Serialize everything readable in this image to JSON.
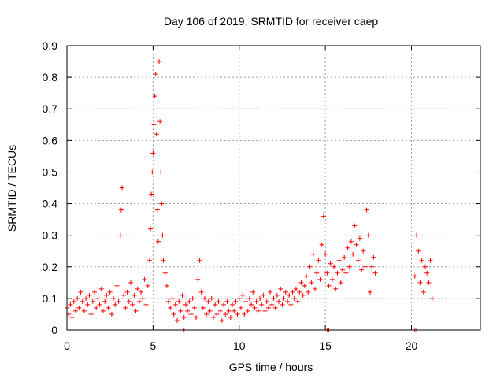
{
  "chart_data": {
    "type": "scatter",
    "title": "Day 106 of 2019, SRMTID for receiver caep",
    "xlabel": "GPS time / hours",
    "ylabel": "SRMTID / TECUs",
    "xlim": [
      0,
      24
    ],
    "ylim": [
      0,
      0.9
    ],
    "xticks": [
      0,
      5,
      10,
      15,
      20
    ],
    "yticks": [
      0,
      0.1,
      0.2,
      0.3,
      0.4,
      0.5,
      0.6,
      0.7,
      0.8,
      0.9
    ],
    "grid": true,
    "marker": "+",
    "marker_color": "#ff0000",
    "series": [
      {
        "name": "SRMTID",
        "points": [
          [
            0.0,
            0.07
          ],
          [
            0.1,
            0.05
          ],
          [
            0.2,
            0.08
          ],
          [
            0.3,
            0.04
          ],
          [
            0.4,
            0.09
          ],
          [
            0.5,
            0.06
          ],
          [
            0.6,
            0.1
          ],
          [
            0.7,
            0.07
          ],
          [
            0.8,
            0.12
          ],
          [
            0.9,
            0.09
          ],
          [
            1.0,
            0.06
          ],
          [
            1.1,
            0.1
          ],
          [
            1.2,
            0.08
          ],
          [
            1.3,
            0.11
          ],
          [
            1.4,
            0.05
          ],
          [
            1.5,
            0.09
          ],
          [
            1.6,
            0.12
          ],
          [
            1.7,
            0.07
          ],
          [
            1.8,
            0.1
          ],
          [
            1.9,
            0.08
          ],
          [
            2.0,
            0.13
          ],
          [
            2.1,
            0.06
          ],
          [
            2.2,
            0.09
          ],
          [
            2.3,
            0.11
          ],
          [
            2.4,
            0.07
          ],
          [
            2.5,
            0.12
          ],
          [
            2.6,
            0.05
          ],
          [
            2.7,
            0.1
          ],
          [
            2.8,
            0.08
          ],
          [
            2.9,
            0.14
          ],
          [
            3.0,
            0.09
          ],
          [
            3.1,
            0.3
          ],
          [
            3.15,
            0.38
          ],
          [
            3.2,
            0.45
          ],
          [
            3.3,
            0.11
          ],
          [
            3.4,
            0.07
          ],
          [
            3.5,
            0.12
          ],
          [
            3.6,
            0.09
          ],
          [
            3.7,
            0.15
          ],
          [
            3.8,
            0.08
          ],
          [
            3.9,
            0.11
          ],
          [
            4.0,
            0.06
          ],
          [
            4.1,
            0.13
          ],
          [
            4.2,
            0.09
          ],
          [
            4.3,
            0.12
          ],
          [
            4.4,
            0.1
          ],
          [
            4.5,
            0.16
          ],
          [
            4.6,
            0.08
          ],
          [
            4.7,
            0.14
          ],
          [
            4.8,
            0.22
          ],
          [
            4.85,
            0.32
          ],
          [
            4.9,
            0.43
          ],
          [
            4.95,
            0.5
          ],
          [
            5.0,
            0.56
          ],
          [
            5.05,
            0.65
          ],
          [
            5.1,
            0.74
          ],
          [
            5.15,
            0.81
          ],
          [
            5.2,
            0.62
          ],
          [
            5.25,
            0.38
          ],
          [
            5.3,
            0.28
          ],
          [
            5.35,
            0.85
          ],
          [
            5.4,
            0.66
          ],
          [
            5.45,
            0.5
          ],
          [
            5.5,
            0.4
          ],
          [
            5.55,
            0.3
          ],
          [
            5.6,
            0.22
          ],
          [
            5.7,
            0.18
          ],
          [
            5.8,
            0.14
          ],
          [
            5.9,
            0.09
          ],
          [
            6.0,
            0.07
          ],
          [
            6.1,
            0.1
          ],
          [
            6.2,
            0.05
          ],
          [
            6.3,
            0.08
          ],
          [
            6.4,
            0.03
          ],
          [
            6.5,
            0.09
          ],
          [
            6.6,
            0.06
          ],
          [
            6.7,
            0.11
          ],
          [
            6.8,
            0.04
          ],
          [
            6.9,
            0.08
          ],
          [
            7.0,
            0.06
          ],
          [
            7.1,
            0.09
          ],
          [
            7.2,
            0.05
          ],
          [
            7.3,
            0.1
          ],
          [
            7.4,
            0.07
          ],
          [
            7.5,
            0.04
          ],
          [
            7.6,
            0.16
          ],
          [
            7.7,
            0.22
          ],
          [
            7.8,
            0.12
          ],
          [
            7.9,
            0.07
          ],
          [
            8.0,
            0.1
          ],
          [
            8.1,
            0.05
          ],
          [
            8.2,
            0.09
          ],
          [
            8.3,
            0.06
          ],
          [
            8.4,
            0.1
          ],
          [
            8.5,
            0.04
          ],
          [
            8.6,
            0.08
          ],
          [
            8.7,
            0.05
          ],
          [
            8.8,
            0.09
          ],
          [
            8.9,
            0.06
          ],
          [
            9.0,
            0.03
          ],
          [
            9.1,
            0.08
          ],
          [
            9.2,
            0.05
          ],
          [
            9.3,
            0.09
          ],
          [
            9.4,
            0.06
          ],
          [
            9.5,
            0.04
          ],
          [
            9.6,
            0.08
          ],
          [
            9.7,
            0.06
          ],
          [
            9.8,
            0.09
          ],
          [
            9.9,
            0.05
          ],
          [
            10.0,
            0.1
          ],
          [
            10.1,
            0.07
          ],
          [
            10.2,
            0.11
          ],
          [
            10.3,
            0.05
          ],
          [
            10.4,
            0.09
          ],
          [
            10.5,
            0.06
          ],
          [
            10.6,
            0.1
          ],
          [
            10.7,
            0.08
          ],
          [
            10.8,
            0.12
          ],
          [
            10.9,
            0.07
          ],
          [
            11.0,
            0.09
          ],
          [
            11.1,
            0.06
          ],
          [
            11.2,
            0.1
          ],
          [
            11.3,
            0.08
          ],
          [
            11.4,
            0.11
          ],
          [
            11.5,
            0.06
          ],
          [
            11.6,
            0.09
          ],
          [
            11.7,
            0.07
          ],
          [
            11.8,
            0.12
          ],
          [
            11.9,
            0.08
          ],
          [
            12.0,
            0.1
          ],
          [
            12.1,
            0.07
          ],
          [
            12.2,
            0.11
          ],
          [
            12.3,
            0.09
          ],
          [
            12.4,
            0.13
          ],
          [
            12.5,
            0.08
          ],
          [
            12.6,
            0.1
          ],
          [
            12.7,
            0.12
          ],
          [
            12.8,
            0.09
          ],
          [
            12.9,
            0.11
          ],
          [
            13.0,
            0.08
          ],
          [
            13.1,
            0.12
          ],
          [
            13.2,
            0.1
          ],
          [
            13.3,
            0.13
          ],
          [
            13.4,
            0.09
          ],
          [
            13.5,
            0.12
          ],
          [
            13.6,
            0.15
          ],
          [
            13.7,
            0.11
          ],
          [
            13.8,
            0.14
          ],
          [
            13.9,
            0.17
          ],
          [
            14.0,
            0.12
          ],
          [
            14.1,
            0.2
          ],
          [
            14.2,
            0.15
          ],
          [
            14.3,
            0.24
          ],
          [
            14.4,
            0.13
          ],
          [
            14.5,
            0.18
          ],
          [
            14.6,
            0.22
          ],
          [
            14.7,
            0.16
          ],
          [
            14.8,
            0.27
          ],
          [
            14.9,
            0.36
          ],
          [
            15.0,
            0.24
          ],
          [
            15.1,
            0.18
          ],
          [
            15.2,
            0.14
          ],
          [
            15.3,
            0.21
          ],
          [
            15.4,
            0.16
          ],
          [
            15.5,
            0.2
          ],
          [
            15.6,
            0.13
          ],
          [
            15.7,
            0.18
          ],
          [
            15.8,
            0.22
          ],
          [
            15.9,
            0.15
          ],
          [
            16.0,
            0.19
          ],
          [
            16.1,
            0.23
          ],
          [
            16.2,
            0.18
          ],
          [
            16.3,
            0.26
          ],
          [
            16.4,
            0.2
          ],
          [
            16.5,
            0.28
          ],
          [
            16.6,
            0.24
          ],
          [
            16.7,
            0.33
          ],
          [
            16.8,
            0.27
          ],
          [
            16.9,
            0.22
          ],
          [
            17.0,
            0.29
          ],
          [
            17.1,
            0.19
          ],
          [
            17.2,
            0.25
          ],
          [
            17.3,
            0.2
          ],
          [
            17.4,
            0.38
          ],
          [
            17.5,
            0.3
          ],
          [
            17.6,
            0.12
          ],
          [
            17.7,
            0.2
          ],
          [
            17.8,
            0.23
          ],
          [
            17.9,
            0.18
          ],
          [
            20.2,
            0.17
          ],
          [
            20.3,
            0.3
          ],
          [
            20.4,
            0.25
          ],
          [
            20.5,
            0.15
          ],
          [
            20.6,
            0.22
          ],
          [
            20.7,
            0.12
          ],
          [
            20.8,
            0.2
          ],
          [
            20.9,
            0.18
          ],
          [
            21.0,
            0.15
          ],
          [
            21.1,
            0.22
          ],
          [
            21.2,
            0.1
          ],
          [
            6.8,
            0.0
          ],
          [
            15.1,
            0.0
          ],
          [
            15.2,
            0.0
          ],
          [
            20.2,
            0.0
          ],
          [
            20.3,
            0.0
          ]
        ]
      }
    ]
  }
}
